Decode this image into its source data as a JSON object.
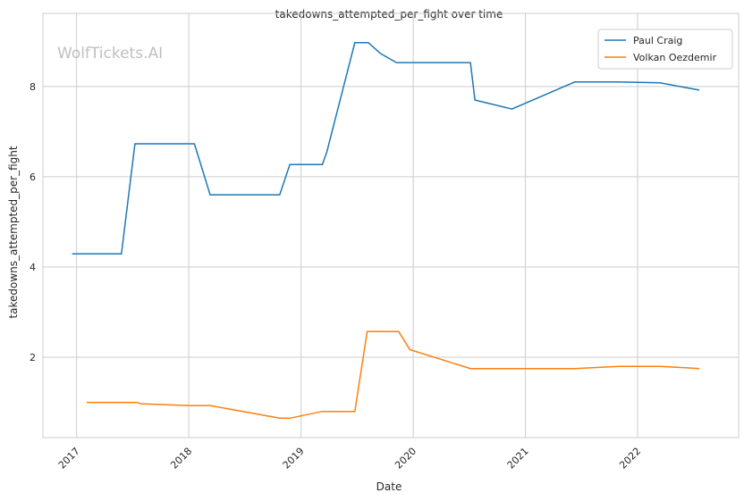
{
  "chart_data": {
    "type": "line",
    "title": "takedowns_attempted_per_fight over time",
    "xlabel": "Date",
    "ylabel": "takedowns_attempted_per_fight",
    "watermark": "WolfTickets.AI",
    "xlim": [
      2016.7,
      2022.9
    ],
    "ylim": [
      0.22,
      9.62
    ],
    "x_ticks": [
      2017,
      2018,
      2019,
      2020,
      2021,
      2022
    ],
    "x_tick_labels": [
      "2017",
      "2018",
      "2019",
      "2020",
      "2021",
      "2022"
    ],
    "y_ticks": [
      2,
      4,
      6,
      8
    ],
    "y_tick_labels": [
      "2",
      "4",
      "6",
      "8"
    ],
    "grid": true,
    "legend_position": "top-right",
    "series": [
      {
        "name": "Paul Craig",
        "color": "#1f77b4",
        "x": [
          2016.96,
          2017.4,
          2017.52,
          2018.05,
          2018.19,
          2018.81,
          2018.9,
          2019.19,
          2019.23,
          2019.48,
          2019.6,
          2019.71,
          2019.85,
          2020.51,
          2020.55,
          2020.88,
          2021.44,
          2021.83,
          2022.2,
          2022.55
        ],
        "y": [
          4.29,
          4.29,
          6.73,
          6.73,
          5.6,
          5.6,
          6.27,
          6.27,
          6.55,
          8.97,
          8.97,
          8.73,
          8.53,
          8.53,
          7.7,
          7.5,
          8.1,
          8.1,
          8.08,
          7.92
        ]
      },
      {
        "name": "Volkan Oezdemir",
        "color": "#ff7f0e",
        "x": [
          2017.09,
          2017.54,
          2017.57,
          2018.0,
          2018.19,
          2018.81,
          2018.9,
          2019.19,
          2019.48,
          2019.59,
          2019.87,
          2019.97,
          2020.51,
          2021.44,
          2021.83,
          2022.2,
          2022.55
        ],
        "y": [
          1.0,
          1.0,
          0.97,
          0.93,
          0.93,
          0.65,
          0.65,
          0.8,
          0.8,
          2.57,
          2.57,
          2.17,
          1.75,
          1.75,
          1.8,
          1.8,
          1.75
        ]
      }
    ]
  }
}
